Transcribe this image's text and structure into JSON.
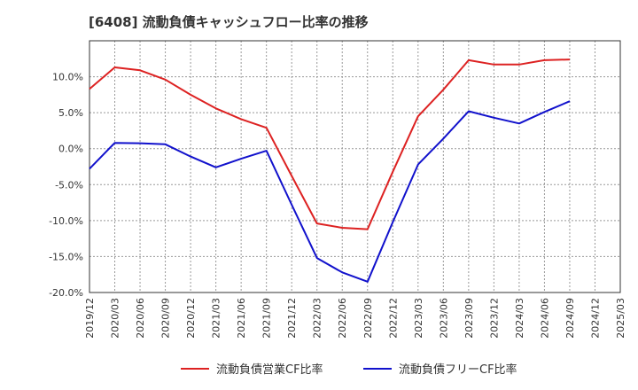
{
  "chart_data": {
    "type": "line",
    "title": "[6408]  流動負債キャッシュフロー比率の推移",
    "xlabel": "",
    "ylabel": "",
    "ylim": [
      -20,
      15
    ],
    "yticks": [
      10,
      5,
      0,
      -5,
      -10,
      -15,
      -20
    ],
    "ytick_labels": [
      "10.0%",
      "5.0%",
      "0.0%",
      "-5.0%",
      "-10.0%",
      "-15.0%",
      "-20.0%"
    ],
    "categories": [
      "2019/12",
      "2020/03",
      "2020/06",
      "2020/09",
      "2020/12",
      "2021/03",
      "2021/06",
      "2021/09",
      "2021/12",
      "2022/03",
      "2022/06",
      "2022/09",
      "2022/12",
      "2023/03",
      "2023/06",
      "2023/09",
      "2023/12",
      "2024/03",
      "2024/06",
      "2024/09",
      "2024/12",
      "2025/03"
    ],
    "grid": true,
    "legend_position": "bottom",
    "series": [
      {
        "name": "流動負債営業CF比率",
        "color": "#dd2222",
        "values": [
          8.3,
          11.3,
          10.9,
          9.6,
          7.5,
          5.6,
          4.1,
          2.9,
          -3.8,
          -10.4,
          -11.0,
          -11.2,
          -3.2,
          4.5,
          8.2,
          12.3,
          11.7,
          11.7,
          12.3,
          12.4,
          null,
          null
        ]
      },
      {
        "name": "流動負債フリーCF比率",
        "color": "#1111cc",
        "values": [
          -2.8,
          0.8,
          0.75,
          0.6,
          -1.1,
          -2.6,
          -1.4,
          -0.3,
          -7.8,
          -15.2,
          -17.2,
          -18.5,
          -10.2,
          -2.2,
          1.4,
          5.2,
          4.3,
          3.5,
          5.1,
          6.6,
          null,
          null
        ]
      }
    ]
  }
}
